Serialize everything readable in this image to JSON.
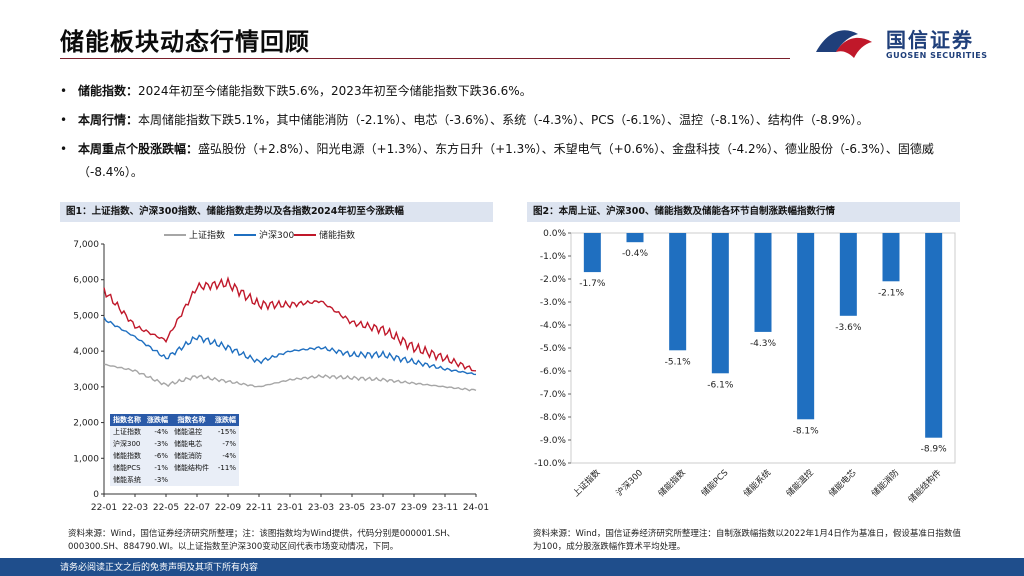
{
  "title": "储能板块动态行情回顾",
  "logo": {
    "cn": "国信证券",
    "en": "GUOSEN SECURITIES"
  },
  "bullets": [
    {
      "label": "储能指数：",
      "text": "2024年初至今储能指数下跌5.6%，2023年初至今储能指数下跌36.6%。"
    },
    {
      "label": "本周行情：",
      "text": "本周储能指数下跌5.1%，其中储能消防（-2.1%）、电芯（-3.6%）、系统（-4.3%）、PCS（-6.1%）、温控（-8.1%）、结构件（-8.9%）。"
    },
    {
      "label": "本周重点个股涨跌幅：",
      "text": "盛弘股份（+2.8%）、阳光电源（+1.3%）、东方日升（+1.3%）、禾望电气（+0.6%）、金盘科技（-4.2%）、德业股份（-6.3%）、固德威（-8.4%）。"
    }
  ],
  "fig1": {
    "heading": "图1：上证指数、沪深300指数、储能指数走势以及各指数2024年初至今涨跌幅",
    "note": "资料来源：Wind，国信证券经济研究所整理；注：该图指数均为Wind提供，代码分别是000001.SH、000300.SH、884790.WI。以上证指数至沪深300变动区间代表市场变动情况，下同。",
    "table": {
      "headers": [
        "指数名称",
        "涨跌幅",
        "指数名称",
        "涨跌幅"
      ],
      "rows": [
        [
          "上证指数",
          "-4%",
          "储能温控",
          "-15%"
        ],
        [
          "沪深300",
          "-3%",
          "储能电芯",
          "-7%"
        ],
        [
          "储能指数",
          "-6%",
          "储能消防",
          "-4%"
        ],
        [
          "储能PCS",
          "-1%",
          "储能结构件",
          "-11%"
        ],
        [
          "储能系统",
          "-3%",
          "",
          ""
        ]
      ]
    }
  },
  "fig2": {
    "heading": "图2：本周上证、沪深300、储能指数及储能各环节自制涨跌幅指数行情",
    "note": "资料来源：Wind，国信证券经济研究所整理注：自制涨跌幅指数以2022年1月4日作为基准日，假设基准日指数值为100，成分股涨跌幅作算术平均处理。"
  },
  "footer": "请务必阅读正文之后的免责声明及其项下所有内容",
  "colors": {
    "brand": "#1f4e8c",
    "accent_red": "#c0182a",
    "bar": "#1f6fc0",
    "sh": "#a6a6a6",
    "hs300": "#1f6fc0",
    "storage": "#c0182a"
  },
  "chart_data": [
    {
      "type": "line",
      "title": "图1：上证指数、沪深300指数、储能指数走势以及各指数2024年初至今涨跌幅",
      "x": [
        "22-01",
        "22-03",
        "22-05",
        "22-07",
        "22-09",
        "22-11",
        "23-01",
        "23-03",
        "23-05",
        "23-07",
        "23-09",
        "23-11",
        "24-01"
      ],
      "ylim": [
        0,
        7000
      ],
      "yticks": [
        "0",
        "1,000",
        "2,000",
        "3,000",
        "4,000",
        "5,000",
        "6,000",
        "7,000"
      ],
      "legend": "top-center",
      "series": [
        {
          "name": "上证指数",
          "values": [
            3630,
            3450,
            3050,
            3300,
            3150,
            3000,
            3200,
            3300,
            3250,
            3200,
            3100,
            3000,
            2900
          ]
        },
        {
          "name": "沪深300",
          "values": [
            4900,
            4400,
            3800,
            4400,
            4100,
            3700,
            4000,
            4100,
            3900,
            3900,
            3700,
            3500,
            3350
          ]
        },
        {
          "name": "储能指数",
          "values": [
            5700,
            4700,
            4300,
            5800,
            5900,
            5300,
            5300,
            5400,
            4800,
            4600,
            4100,
            3800,
            3450
          ]
        }
      ]
    },
    {
      "type": "bar",
      "title": "图2：本周上证、沪深300、储能指数及储能各环节自制涨跌幅指数行情",
      "categories": [
        "上证指数",
        "沪深300",
        "储能指数",
        "储能PCS",
        "储能系统",
        "储能温控",
        "储能电芯",
        "储能消防",
        "储能结构件"
      ],
      "values": [
        -1.7,
        -0.4,
        -5.1,
        -6.1,
        -4.3,
        -8.1,
        -3.6,
        -2.1,
        -8.9
      ],
      "value_labels": [
        "-1.7%",
        "-0.4%",
        "-5.1%",
        "-6.1%",
        "-4.3%",
        "-8.1%",
        "-3.6%",
        "-2.1%",
        "-8.9%"
      ],
      "ylim": [
        -10,
        0
      ],
      "yticks": [
        "0.0%",
        "-1.0%",
        "-2.0%",
        "-3.0%",
        "-4.0%",
        "-5.0%",
        "-6.0%",
        "-7.0%",
        "-8.0%",
        "-9.0%",
        "-10.0%"
      ]
    }
  ]
}
